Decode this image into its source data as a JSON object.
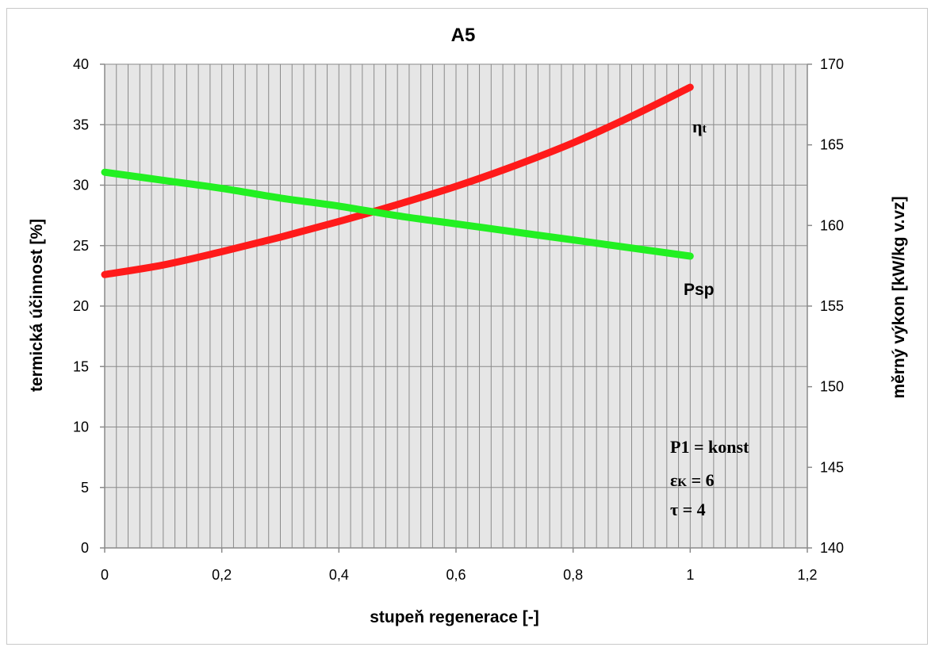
{
  "chart_data": {
    "type": "line",
    "title": "A5",
    "xlabel": "stupeň regenerace [-]",
    "ylabel": "termická účinnost [%]",
    "y2label": "měrný výkon [kW/kg v.vz]",
    "xlim": [
      0,
      1.2
    ],
    "ylim": [
      0,
      40
    ],
    "y2lim": [
      140,
      170
    ],
    "x_ticks": [
      "0",
      "0,2",
      "0,4",
      "0,6",
      "0,8",
      "1",
      "1,2"
    ],
    "y_ticks": [
      "0",
      "5",
      "10",
      "15",
      "20",
      "25",
      "30",
      "35",
      "40"
    ],
    "y2_ticks": [
      "140",
      "145",
      "150",
      "155",
      "160",
      "165",
      "170"
    ],
    "grid": true,
    "background": "#e6e6e6",
    "series": [
      {
        "name": "ηt",
        "axis": "left",
        "color": "#ff1a1a",
        "x": [
          0,
          0.1,
          0.2,
          0.3,
          0.4,
          0.5,
          0.6,
          0.7,
          0.8,
          0.9,
          1.0
        ],
        "values": [
          22.6,
          23.4,
          24.5,
          25.7,
          27.0,
          28.4,
          29.9,
          31.6,
          33.5,
          35.7,
          38.1
        ]
      },
      {
        "name": "Psp",
        "axis": "right",
        "color": "#22f022",
        "x": [
          0,
          0.1,
          0.2,
          0.3,
          0.4,
          0.5,
          0.6,
          0.7,
          0.8,
          0.9,
          1.0
        ],
        "values": [
          163.3,
          162.8,
          162.3,
          161.7,
          161.2,
          160.6,
          160.1,
          159.6,
          159.1,
          158.6,
          158.1
        ]
      }
    ],
    "annotations": {
      "eta_label_main": "η",
      "eta_label_sub": "t",
      "psp_label": "Psp",
      "p1": "P1 = konst",
      "eps_main": "ε",
      "eps_sub": "K",
      "eps_rest": " = 6",
      "tau": "τ = 4"
    }
  }
}
